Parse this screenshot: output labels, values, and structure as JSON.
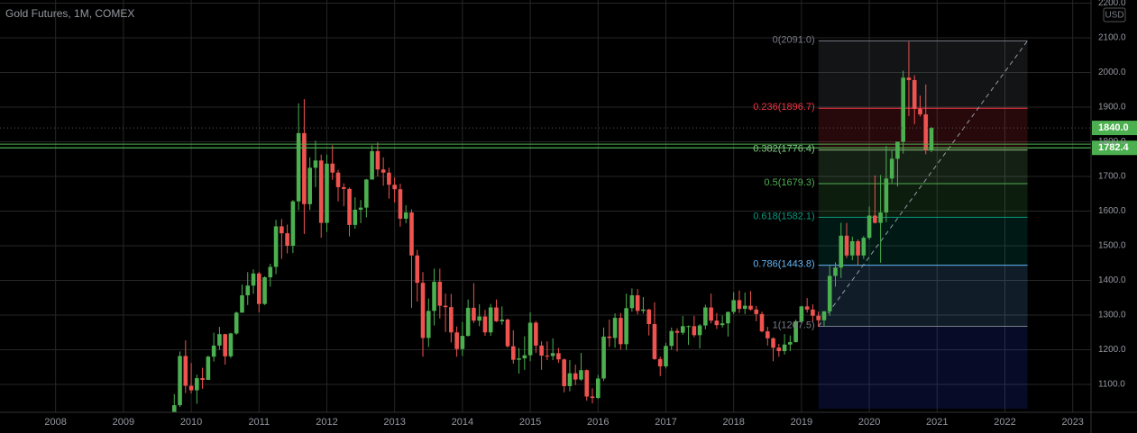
{
  "chart_data": {
    "type": "candlestick",
    "title": "Gold Futures, 1M, COMEX",
    "currency": "USD",
    "up_color": "#4caf50",
    "down_color": "#ef5350",
    "grid": true,
    "xlim": [
      2007.18,
      2023.27
    ],
    "xticks": [
      2008,
      2009,
      2010,
      2011,
      2012,
      2013,
      2014,
      2015,
      2016,
      2017,
      2018,
      2019,
      2020,
      2021,
      2022,
      2023
    ],
    "ylim": [
      1019.5,
      2209
    ],
    "yticks": [
      {
        "value": 1100,
        "label": "1100.0"
      },
      {
        "value": 1200,
        "label": "1200.0"
      },
      {
        "value": 1300,
        "label": "1300.0"
      },
      {
        "value": 1400,
        "label": "1400.0"
      },
      {
        "value": 1500,
        "label": "1500.0"
      },
      {
        "value": 1600,
        "label": "1600.0"
      },
      {
        "value": 1700,
        "label": "1700.0"
      },
      {
        "value": 1800,
        "label": "1800.0"
      },
      {
        "value": 1900,
        "label": "1900.0"
      },
      {
        "value": 2000,
        "label": "2000.0"
      },
      {
        "value": 2100,
        "label": "2100.0"
      },
      {
        "value": 2200,
        "label": "2200.0"
      }
    ],
    "x": [
      "2009-10",
      "2009-11",
      "2009-12",
      "2010-01",
      "2010-02",
      "2010-03",
      "2010-04",
      "2010-05",
      "2010-06",
      "2010-07",
      "2010-08",
      "2010-09",
      "2010-10",
      "2010-11",
      "2010-12",
      "2011-01",
      "2011-02",
      "2011-03",
      "2011-04",
      "2011-05",
      "2011-06",
      "2011-07",
      "2011-08",
      "2011-09",
      "2011-10",
      "2011-11",
      "2011-12",
      "2012-01",
      "2012-02",
      "2012-03",
      "2012-04",
      "2012-05",
      "2012-06",
      "2012-07",
      "2012-08",
      "2012-09",
      "2012-10",
      "2012-11",
      "2012-12",
      "2013-01",
      "2013-02",
      "2013-03",
      "2013-04",
      "2013-05",
      "2013-06",
      "2013-07",
      "2013-08",
      "2013-09",
      "2013-10",
      "2013-11",
      "2013-12",
      "2014-01",
      "2014-02",
      "2014-03",
      "2014-04",
      "2014-05",
      "2014-06",
      "2014-07",
      "2014-08",
      "2014-09",
      "2014-10",
      "2014-11",
      "2014-12",
      "2015-01",
      "2015-02",
      "2015-03",
      "2015-04",
      "2015-05",
      "2015-06",
      "2015-07",
      "2015-08",
      "2015-09",
      "2015-10",
      "2015-11",
      "2015-12",
      "2016-01",
      "2016-02",
      "2016-03",
      "2016-04",
      "2016-05",
      "2016-06",
      "2016-07",
      "2016-08",
      "2016-09",
      "2016-10",
      "2016-11",
      "2016-12",
      "2017-01",
      "2017-02",
      "2017-03",
      "2017-04",
      "2017-05",
      "2017-06",
      "2017-07",
      "2017-08",
      "2017-09",
      "2017-10",
      "2017-11",
      "2017-12",
      "2018-01",
      "2018-02",
      "2018-03",
      "2018-04",
      "2018-05",
      "2018-06",
      "2018-07",
      "2018-08",
      "2018-09",
      "2018-10",
      "2018-11",
      "2018-12",
      "2019-01",
      "2019-02",
      "2019-03",
      "2019-04",
      "2019-05",
      "2019-06",
      "2019-07",
      "2019-08",
      "2019-09",
      "2019-10",
      "2019-11",
      "2019-12",
      "2020-01",
      "2020-02",
      "2020-03",
      "2020-04",
      "2020-05",
      "2020-06",
      "2020-07",
      "2020-08",
      "2020-09",
      "2020-10",
      "2020-11",
      "2020-12"
    ],
    "series": [
      {
        "name": "Gold Futures",
        "values": [
          [
            1007,
            1072,
            1001,
            1040
          ],
          [
            1040,
            1195,
            1035,
            1182
          ],
          [
            1182,
            1227,
            1075,
            1096
          ],
          [
            1096,
            1162,
            1074,
            1083
          ],
          [
            1083,
            1128,
            1044,
            1118
          ],
          [
            1118,
            1148,
            1087,
            1113
          ],
          [
            1113,
            1183,
            1113,
            1180
          ],
          [
            1180,
            1249,
            1166,
            1212
          ],
          [
            1212,
            1266,
            1200,
            1245
          ],
          [
            1245,
            1246,
            1157,
            1181
          ],
          [
            1181,
            1249,
            1176,
            1247
          ],
          [
            1247,
            1310,
            1243,
            1307
          ],
          [
            1307,
            1388,
            1307,
            1357
          ],
          [
            1357,
            1424,
            1329,
            1385
          ],
          [
            1385,
            1432,
            1361,
            1420
          ],
          [
            1420,
            1425,
            1308,
            1332
          ],
          [
            1332,
            1412,
            1329,
            1409
          ],
          [
            1409,
            1448,
            1382,
            1439
          ],
          [
            1439,
            1575,
            1418,
            1556
          ],
          [
            1556,
            1577,
            1462,
            1536
          ],
          [
            1536,
            1561,
            1478,
            1500
          ],
          [
            1500,
            1632,
            1479,
            1628
          ],
          [
            1628,
            1911,
            1603,
            1825
          ],
          [
            1825,
            1923,
            1534,
            1620
          ],
          [
            1620,
            1755,
            1603,
            1725
          ],
          [
            1725,
            1803,
            1669,
            1746
          ],
          [
            1746,
            1763,
            1523,
            1566
          ],
          [
            1566,
            1763,
            1540,
            1737
          ],
          [
            1737,
            1790,
            1690,
            1711
          ],
          [
            1711,
            1719,
            1628,
            1669
          ],
          [
            1669,
            1680,
            1614,
            1664
          ],
          [
            1664,
            1668,
            1527,
            1560
          ],
          [
            1560,
            1640,
            1549,
            1604
          ],
          [
            1604,
            1632,
            1565,
            1610
          ],
          [
            1610,
            1693,
            1582,
            1691
          ],
          [
            1691,
            1790,
            1692,
            1773
          ],
          [
            1773,
            1798,
            1700,
            1720
          ],
          [
            1720,
            1755,
            1673,
            1711
          ],
          [
            1711,
            1725,
            1636,
            1676
          ],
          [
            1676,
            1697,
            1625,
            1663
          ],
          [
            1663,
            1679,
            1555,
            1578
          ],
          [
            1578,
            1617,
            1565,
            1596
          ],
          [
            1596,
            1605,
            1321,
            1472
          ],
          [
            1472,
            1488,
            1339,
            1393
          ],
          [
            1393,
            1424,
            1180,
            1234
          ],
          [
            1234,
            1348,
            1208,
            1312
          ],
          [
            1312,
            1434,
            1270,
            1396
          ],
          [
            1396,
            1434,
            1290,
            1327
          ],
          [
            1327,
            1362,
            1251,
            1323
          ],
          [
            1323,
            1361,
            1221,
            1250
          ],
          [
            1250,
            1267,
            1180,
            1202
          ],
          [
            1202,
            1280,
            1182,
            1240
          ],
          [
            1240,
            1345,
            1238,
            1321
          ],
          [
            1321,
            1392,
            1277,
            1284
          ],
          [
            1284,
            1331,
            1268,
            1296
          ],
          [
            1296,
            1315,
            1240,
            1250
          ],
          [
            1250,
            1332,
            1240,
            1322
          ],
          [
            1322,
            1345,
            1280,
            1282
          ],
          [
            1282,
            1325,
            1272,
            1287
          ],
          [
            1287,
            1290,
            1206,
            1210
          ],
          [
            1210,
            1256,
            1160,
            1171
          ],
          [
            1171,
            1205,
            1131,
            1175
          ],
          [
            1175,
            1239,
            1142,
            1184
          ],
          [
            1184,
            1308,
            1167,
            1278
          ],
          [
            1278,
            1283,
            1191,
            1212
          ],
          [
            1212,
            1224,
            1142,
            1183
          ],
          [
            1183,
            1224,
            1170,
            1182
          ],
          [
            1182,
            1233,
            1170,
            1190
          ],
          [
            1190,
            1205,
            1162,
            1172
          ],
          [
            1172,
            1175,
            1077,
            1095
          ],
          [
            1095,
            1170,
            1080,
            1132
          ],
          [
            1132,
            1157,
            1098,
            1114
          ],
          [
            1114,
            1191,
            1110,
            1141
          ],
          [
            1141,
            1143,
            1053,
            1065
          ],
          [
            1065,
            1089,
            1045,
            1061
          ],
          [
            1061,
            1127,
            1058,
            1117
          ],
          [
            1117,
            1264,
            1110,
            1238
          ],
          [
            1238,
            1287,
            1208,
            1234
          ],
          [
            1234,
            1305,
            1206,
            1292
          ],
          [
            1292,
            1306,
            1200,
            1216
          ],
          [
            1216,
            1362,
            1200,
            1320
          ],
          [
            1320,
            1377,
            1310,
            1357
          ],
          [
            1357,
            1375,
            1302,
            1312
          ],
          [
            1312,
            1352,
            1304,
            1316
          ],
          [
            1316,
            1318,
            1241,
            1274
          ],
          [
            1274,
            1337,
            1171,
            1173
          ],
          [
            1173,
            1180,
            1124,
            1152
          ],
          [
            1152,
            1220,
            1146,
            1211
          ],
          [
            1211,
            1264,
            1200,
            1254
          ],
          [
            1254,
            1262,
            1195,
            1249
          ],
          [
            1249,
            1297,
            1243,
            1268
          ],
          [
            1268,
            1270,
            1214,
            1268
          ],
          [
            1268,
            1298,
            1236,
            1242
          ],
          [
            1242,
            1274,
            1204,
            1270
          ],
          [
            1270,
            1330,
            1259,
            1322
          ],
          [
            1322,
            1362,
            1276,
            1284
          ],
          [
            1284,
            1306,
            1260,
            1271
          ],
          [
            1271,
            1299,
            1264,
            1276
          ],
          [
            1276,
            1310,
            1238,
            1309
          ],
          [
            1309,
            1366,
            1303,
            1343
          ],
          [
            1343,
            1371,
            1306,
            1318
          ],
          [
            1318,
            1365,
            1303,
            1327
          ],
          [
            1327,
            1369,
            1313,
            1316
          ],
          [
            1316,
            1326,
            1282,
            1303
          ],
          [
            1303,
            1310,
            1250,
            1253
          ],
          [
            1253,
            1266,
            1212,
            1233
          ],
          [
            1233,
            1236,
            1167,
            1206
          ],
          [
            1206,
            1217,
            1180,
            1196
          ],
          [
            1196,
            1245,
            1186,
            1215
          ],
          [
            1215,
            1241,
            1196,
            1222
          ],
          [
            1222,
            1287,
            1221,
            1282
          ],
          [
            1282,
            1327,
            1277,
            1325
          ],
          [
            1325,
            1349,
            1307,
            1316
          ],
          [
            1316,
            1331,
            1281,
            1298
          ],
          [
            1298,
            1310,
            1266,
            1285
          ],
          [
            1285,
            1311,
            1268,
            1311
          ],
          [
            1311,
            1442,
            1298,
            1413
          ],
          [
            1413,
            1452,
            1382,
            1437
          ],
          [
            1437,
            1566,
            1407,
            1529
          ],
          [
            1529,
            1566,
            1465,
            1472
          ],
          [
            1472,
            1526,
            1458,
            1513
          ],
          [
            1513,
            1518,
            1445,
            1472
          ],
          [
            1472,
            1528,
            1462,
            1523
          ],
          [
            1523,
            1613,
            1518,
            1587
          ],
          [
            1587,
            1703,
            1564,
            1566
          ],
          [
            1566,
            1704,
            1451,
            1596
          ],
          [
            1596,
            1788,
            1568,
            1694
          ],
          [
            1694,
            1775,
            1681,
            1751
          ],
          [
            1751,
            1800,
            1671,
            1800
          ],
          [
            1800,
            2005,
            1766,
            1985
          ],
          [
            1985,
            2089,
            1874,
            1978
          ],
          [
            1978,
            1992,
            1851,
            1895
          ],
          [
            1895,
            1933,
            1873,
            1879
          ],
          [
            1879,
            1965,
            1764,
            1776
          ],
          [
            1776,
            1843,
            1770,
            1840
          ]
        ]
      }
    ],
    "fibonacci": {
      "start": "2019-04",
      "end": "2022-05",
      "levels": [
        {
          "value": 2091.0,
          "label": "0(2091.0)",
          "color": "#787b86"
        },
        {
          "value": 1896.7,
          "label": "0.236(1896.7)",
          "color": "#f23645"
        },
        {
          "value": 1776.4,
          "label": "0.382(1776.4)",
          "color": "#81c784"
        },
        {
          "value": 1679.3,
          "label": "0.5(1679.3)",
          "color": "#4caf50"
        },
        {
          "value": 1582.1,
          "label": "0.618(1582.1)",
          "color": "#089981"
        },
        {
          "value": 1443.8,
          "label": "0.786(1443.8)",
          "color": "#64b5f6"
        },
        {
          "value": 1267.5,
          "label": "1(1267.5)",
          "color": "#787b86"
        }
      ]
    },
    "hlines": [
      1793
    ],
    "price_lines": [
      {
        "value": 1840,
        "label": "1840.0",
        "color": "#4caf50",
        "style": "dotted"
      },
      {
        "value": 1782.4,
        "color": "#4caf50",
        "style": "solid"
      }
    ]
  }
}
